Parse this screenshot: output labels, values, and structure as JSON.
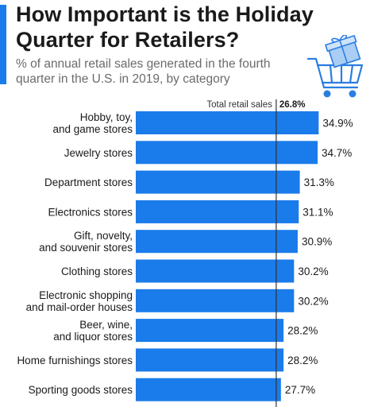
{
  "title": "How Important is the Holiday Quarter for Retailers?",
  "subtitle": "% of annual retail sales generated in the fourth quarter in the U.S. in 2019, by category",
  "icons": {
    "cart": "shopping-cart-with-gift-icon"
  },
  "colors": {
    "accent": "#1a7bea",
    "bar": "#1a7bea",
    "reference_line": "#333333"
  },
  "chart_data": {
    "type": "bar",
    "orientation": "horizontal",
    "title": "How Important is the Holiday Quarter for Retailers?",
    "subtitle": "% of annual retail sales generated in the fourth quarter in the U.S. in 2019, by category",
    "categories": [
      "Hobby, toy, and game stores",
      "Jewelry stores",
      "Department stores",
      "Electronics stores",
      "Gift, novelty, and souvenir stores",
      "Clothing stores",
      "Electronic shopping and mail-order houses",
      "Beer, wine, and liquor stores",
      "Home furnishings stores",
      "Sporting goods stores"
    ],
    "category_lines": [
      [
        "Hobby, toy,",
        "and game stores"
      ],
      [
        "Jewelry stores"
      ],
      [
        "Department stores"
      ],
      [
        "Electronics stores"
      ],
      [
        "Gift, novelty,",
        "and souvenir stores"
      ],
      [
        "Clothing stores"
      ],
      [
        "Electronic shopping",
        "and mail-order houses"
      ],
      [
        "Beer, wine,",
        "and liquor stores"
      ],
      [
        "Home furnishings stores"
      ],
      [
        "Sporting goods stores"
      ]
    ],
    "values": [
      34.9,
      34.7,
      31.3,
      31.1,
      30.9,
      30.2,
      30.2,
      28.2,
      28.2,
      27.7
    ],
    "value_labels": [
      "34.9%",
      "34.7%",
      "31.3%",
      "31.1%",
      "30.9%",
      "30.2%",
      "30.2%",
      "28.2%",
      "28.2%",
      "27.7%"
    ],
    "reference_line": {
      "label": "Total retail sales",
      "value": 26.8,
      "value_label": "26.8%"
    },
    "xlim": [
      0,
      35
    ],
    "xlabel": "",
    "ylabel": "",
    "grid": false,
    "legend": "none"
  }
}
